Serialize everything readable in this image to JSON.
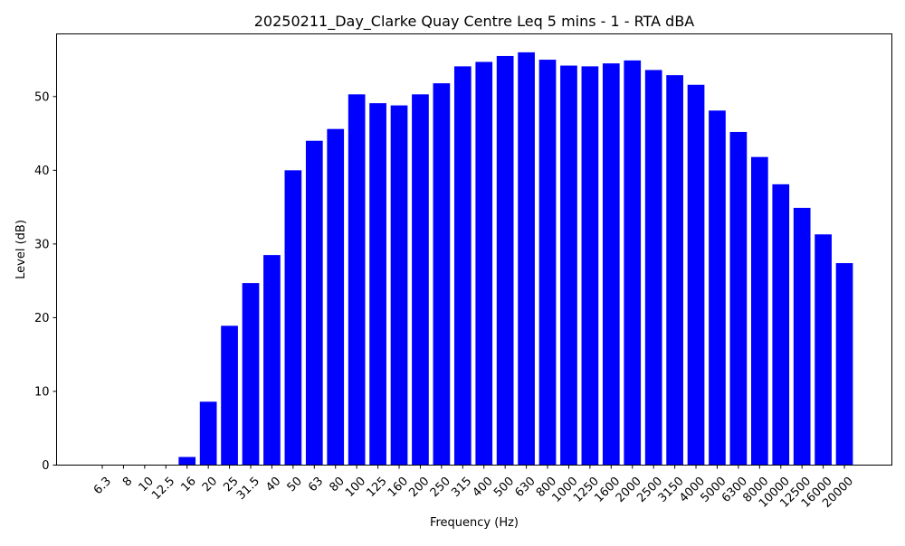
{
  "chart_data": {
    "type": "bar",
    "title": "20250211_Day_Clarke Quay Centre Leq 5 mins - 1 - RTA dBA",
    "xlabel": "Frequency (Hz)",
    "ylabel": "Level (dB)",
    "ylim": [
      0,
      58.5
    ],
    "yticks": [
      0,
      10,
      20,
      30,
      40,
      50
    ],
    "grid": false,
    "bar_color": "#0000ff",
    "categories": [
      "6.3",
      "8",
      "10",
      "12.5",
      "16",
      "20",
      "25",
      "31.5",
      "40",
      "50",
      "63",
      "80",
      "100",
      "125",
      "160",
      "200",
      "250",
      "315",
      "400",
      "500",
      "630",
      "800",
      "1000",
      "1250",
      "1600",
      "2000",
      "2500",
      "3150",
      "4000",
      "5000",
      "6300",
      "8000",
      "10000",
      "12500",
      "16000",
      "20000"
    ],
    "values": [
      0,
      0,
      0,
      0,
      1.1,
      8.6,
      18.9,
      24.7,
      28.5,
      40.0,
      44.0,
      45.6,
      50.3,
      49.1,
      48.8,
      50.3,
      51.8,
      54.1,
      54.7,
      55.5,
      56.0,
      55.0,
      54.2,
      54.1,
      54.5,
      54.9,
      53.6,
      52.9,
      51.6,
      48.1,
      45.2,
      41.8,
      38.1,
      34.9,
      31.3,
      27.4
    ]
  }
}
